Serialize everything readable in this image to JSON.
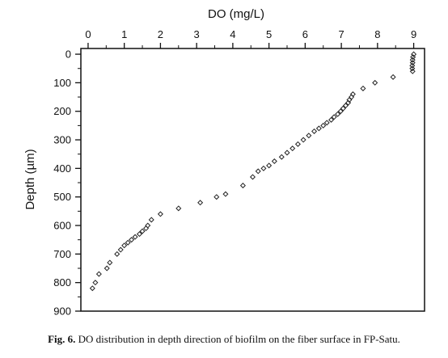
{
  "chart_data": {
    "type": "scatter",
    "xlabel": "DO (mg/L)",
    "ylabel": "Depth (µm)",
    "x_ticks": [
      "0",
      "1",
      "2",
      "3",
      "4",
      "5",
      "6",
      "7",
      "8",
      "9"
    ],
    "y_ticks": [
      "0",
      "100",
      "200",
      "300",
      "400",
      "500",
      "600",
      "700",
      "800",
      "900"
    ],
    "xlim": [
      -0.2,
      9.3
    ],
    "ylim": [
      -20,
      900
    ],
    "y_inverted": true,
    "x_axis_position": "top",
    "marker": "open-diamond",
    "marker_color": "#222222",
    "series": [
      {
        "x": [
          9.0,
          8.98,
          8.97,
          8.97,
          8.96,
          8.96,
          8.97,
          8.43,
          7.93,
          7.6,
          7.32,
          7.28,
          7.22,
          7.19,
          7.12,
          7.05,
          6.98,
          6.9,
          6.8,
          6.72,
          6.6,
          6.5,
          6.38,
          6.25,
          6.1,
          5.95,
          5.8,
          5.65,
          5.5,
          5.35,
          5.15,
          5.0,
          4.85,
          4.7,
          4.55,
          4.28,
          3.8,
          3.55,
          3.1,
          2.5,
          2.0,
          1.75,
          1.65,
          1.6,
          1.5,
          1.42,
          1.3,
          1.2,
          1.1,
          1.0,
          0.9,
          0.8,
          0.6,
          0.52,
          0.3,
          0.2,
          0.12
        ],
        "y": [
          0,
          10,
          20,
          30,
          40,
          50,
          60,
          80,
          100,
          120,
          140,
          150,
          160,
          170,
          180,
          190,
          200,
          210,
          220,
          230,
          240,
          250,
          260,
          270,
          285,
          300,
          315,
          330,
          345,
          360,
          375,
          390,
          400,
          410,
          430,
          460,
          490,
          500,
          520,
          540,
          560,
          580,
          600,
          610,
          620,
          630,
          640,
          650,
          660,
          670,
          685,
          700,
          730,
          750,
          770,
          800,
          820
        ]
      }
    ]
  },
  "caption": {
    "label": "Fig. 6.",
    "text": " DO distribution in depth direction of biofilm on the fiber surface in FP-Satu."
  }
}
